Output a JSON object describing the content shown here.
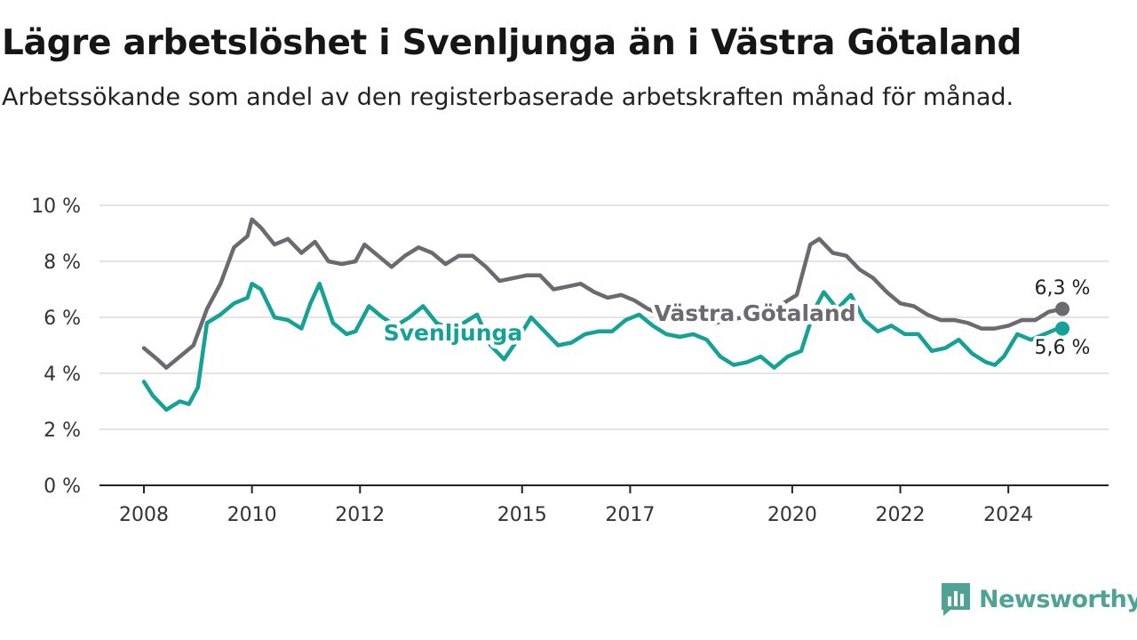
{
  "header": {
    "title": "Lägre arbetslöshet i Svenljunga än i Västra Götaland",
    "subtitle": "Arbetssökande som andel av den registerbaserade arbetskraften månad för månad."
  },
  "brand": {
    "name": "Newsworthy",
    "icon": "newsworthy-logo-icon",
    "color": "#4fa394"
  },
  "chart_data": {
    "type": "line",
    "title": "Lägre arbetslöshet i Svenljunga än i Västra Götaland",
    "subtitle": "Arbetssökande som andel av den registerbaserade arbetskraften månad för månad.",
    "x_ticks": [
      "2008",
      "2010",
      "2012",
      "2015",
      "2017",
      "2020",
      "2022",
      "2024"
    ],
    "y_ticks": [
      "0 %",
      "2 %",
      "4 %",
      "6 %",
      "8 %",
      "10 %"
    ],
    "ylim": [
      0,
      10
    ],
    "grid": true,
    "series": [
      {
        "name": "Västra Götaland",
        "color": "#6b6a70",
        "end_label": "6,3 %",
        "points": [
          [
            "2008-01",
            4.9
          ],
          [
            "2008-04",
            4.5
          ],
          [
            "2008-06",
            4.2
          ],
          [
            "2008-09",
            4.6
          ],
          [
            "2008-12",
            5.0
          ],
          [
            "2009-03",
            6.3
          ],
          [
            "2009-06",
            7.2
          ],
          [
            "2009-09",
            8.5
          ],
          [
            "2009-12",
            8.9
          ],
          [
            "2010-01",
            9.5
          ],
          [
            "2010-03",
            9.2
          ],
          [
            "2010-06",
            8.6
          ],
          [
            "2010-09",
            8.8
          ],
          [
            "2010-12",
            8.3
          ],
          [
            "2011-03",
            8.7
          ],
          [
            "2011-06",
            8.0
          ],
          [
            "2011-09",
            7.9
          ],
          [
            "2011-12",
            8.0
          ],
          [
            "2012-02",
            8.6
          ],
          [
            "2012-05",
            8.2
          ],
          [
            "2012-08",
            7.8
          ],
          [
            "2012-11",
            8.2
          ],
          [
            "2013-02",
            8.5
          ],
          [
            "2013-05",
            8.3
          ],
          [
            "2013-08",
            7.9
          ],
          [
            "2013-11",
            8.2
          ],
          [
            "2014-02",
            8.2
          ],
          [
            "2014-05",
            7.8
          ],
          [
            "2014-08",
            7.3
          ],
          [
            "2014-11",
            7.4
          ],
          [
            "2015-02",
            7.5
          ],
          [
            "2015-05",
            7.5
          ],
          [
            "2015-08",
            7.0
          ],
          [
            "2015-11",
            7.1
          ],
          [
            "2016-02",
            7.2
          ],
          [
            "2016-05",
            6.9
          ],
          [
            "2016-08",
            6.7
          ],
          [
            "2016-11",
            6.8
          ],
          [
            "2017-02",
            6.6
          ],
          [
            "2017-05",
            6.3
          ],
          [
            "2017-08",
            6.1
          ],
          [
            "2017-11",
            6.1
          ],
          [
            "2018-02",
            6.3
          ],
          [
            "2018-05",
            5.9
          ],
          [
            "2018-08",
            5.8
          ],
          [
            "2018-11",
            5.9
          ],
          [
            "2019-02",
            6.0
          ],
          [
            "2019-05",
            6.1
          ],
          [
            "2019-08",
            6.3
          ],
          [
            "2019-11",
            6.5
          ],
          [
            "2020-02",
            6.8
          ],
          [
            "2020-05",
            8.6
          ],
          [
            "2020-07",
            8.8
          ],
          [
            "2020-10",
            8.3
          ],
          [
            "2021-01",
            8.2
          ],
          [
            "2021-04",
            7.7
          ],
          [
            "2021-07",
            7.4
          ],
          [
            "2021-10",
            6.9
          ],
          [
            "2022-01",
            6.5
          ],
          [
            "2022-04",
            6.4
          ],
          [
            "2022-07",
            6.1
          ],
          [
            "2022-10",
            5.9
          ],
          [
            "2023-01",
            5.9
          ],
          [
            "2023-04",
            5.8
          ],
          [
            "2023-07",
            5.6
          ],
          [
            "2023-10",
            5.6
          ],
          [
            "2024-01",
            5.7
          ],
          [
            "2024-04",
            5.9
          ],
          [
            "2024-07",
            5.9
          ],
          [
            "2024-10",
            6.2
          ],
          [
            "2025-01",
            6.3
          ]
        ]
      },
      {
        "name": "Svenljunga",
        "color": "#14a196",
        "end_label": "5,6 %",
        "points": [
          [
            "2008-01",
            3.7
          ],
          [
            "2008-03",
            3.2
          ],
          [
            "2008-06",
            2.7
          ],
          [
            "2008-09",
            3.0
          ],
          [
            "2008-11",
            2.9
          ],
          [
            "2009-01",
            3.5
          ],
          [
            "2009-03",
            5.8
          ],
          [
            "2009-06",
            6.1
          ],
          [
            "2009-09",
            6.5
          ],
          [
            "2009-12",
            6.7
          ],
          [
            "2010-01",
            7.2
          ],
          [
            "2010-03",
            7.0
          ],
          [
            "2010-06",
            6.0
          ],
          [
            "2010-09",
            5.9
          ],
          [
            "2010-12",
            5.6
          ],
          [
            "2011-02",
            6.5
          ],
          [
            "2011-04",
            7.2
          ],
          [
            "2011-07",
            5.8
          ],
          [
            "2011-10",
            5.4
          ],
          [
            "2011-12",
            5.5
          ],
          [
            "2012-03",
            6.4
          ],
          [
            "2012-06",
            6.0
          ],
          [
            "2012-09",
            5.7
          ],
          [
            "2012-12",
            6.0
          ],
          [
            "2013-03",
            6.4
          ],
          [
            "2013-06",
            5.8
          ],
          [
            "2013-09",
            5.6
          ],
          [
            "2013-12",
            5.8
          ],
          [
            "2014-03",
            6.1
          ],
          [
            "2014-06",
            5.0
          ],
          [
            "2014-09",
            4.5
          ],
          [
            "2014-12",
            5.2
          ],
          [
            "2015-03",
            6.0
          ],
          [
            "2015-06",
            5.5
          ],
          [
            "2015-09",
            5.0
          ],
          [
            "2015-12",
            5.1
          ],
          [
            "2016-03",
            5.4
          ],
          [
            "2016-06",
            5.5
          ],
          [
            "2016-09",
            5.5
          ],
          [
            "2016-12",
            5.9
          ],
          [
            "2017-03",
            6.1
          ],
          [
            "2017-06",
            5.7
          ],
          [
            "2017-09",
            5.4
          ],
          [
            "2017-12",
            5.3
          ],
          [
            "2018-03",
            5.4
          ],
          [
            "2018-06",
            5.2
          ],
          [
            "2018-09",
            4.6
          ],
          [
            "2018-12",
            4.3
          ],
          [
            "2019-03",
            4.4
          ],
          [
            "2019-06",
            4.6
          ],
          [
            "2019-09",
            4.2
          ],
          [
            "2019-12",
            4.6
          ],
          [
            "2020-03",
            4.8
          ],
          [
            "2020-06",
            6.3
          ],
          [
            "2020-08",
            6.9
          ],
          [
            "2020-11",
            6.3
          ],
          [
            "2021-02",
            6.8
          ],
          [
            "2021-05",
            5.9
          ],
          [
            "2021-08",
            5.5
          ],
          [
            "2021-11",
            5.7
          ],
          [
            "2022-02",
            5.4
          ],
          [
            "2022-05",
            5.4
          ],
          [
            "2022-08",
            4.8
          ],
          [
            "2022-11",
            4.9
          ],
          [
            "2023-02",
            5.2
          ],
          [
            "2023-05",
            4.7
          ],
          [
            "2023-08",
            4.4
          ],
          [
            "2023-10",
            4.3
          ],
          [
            "2023-12",
            4.6
          ],
          [
            "2024-03",
            5.4
          ],
          [
            "2024-06",
            5.2
          ],
          [
            "2024-09",
            5.4
          ],
          [
            "2024-12",
            5.6
          ],
          [
            "2025-01",
            5.6
          ]
        ]
      }
    ]
  }
}
